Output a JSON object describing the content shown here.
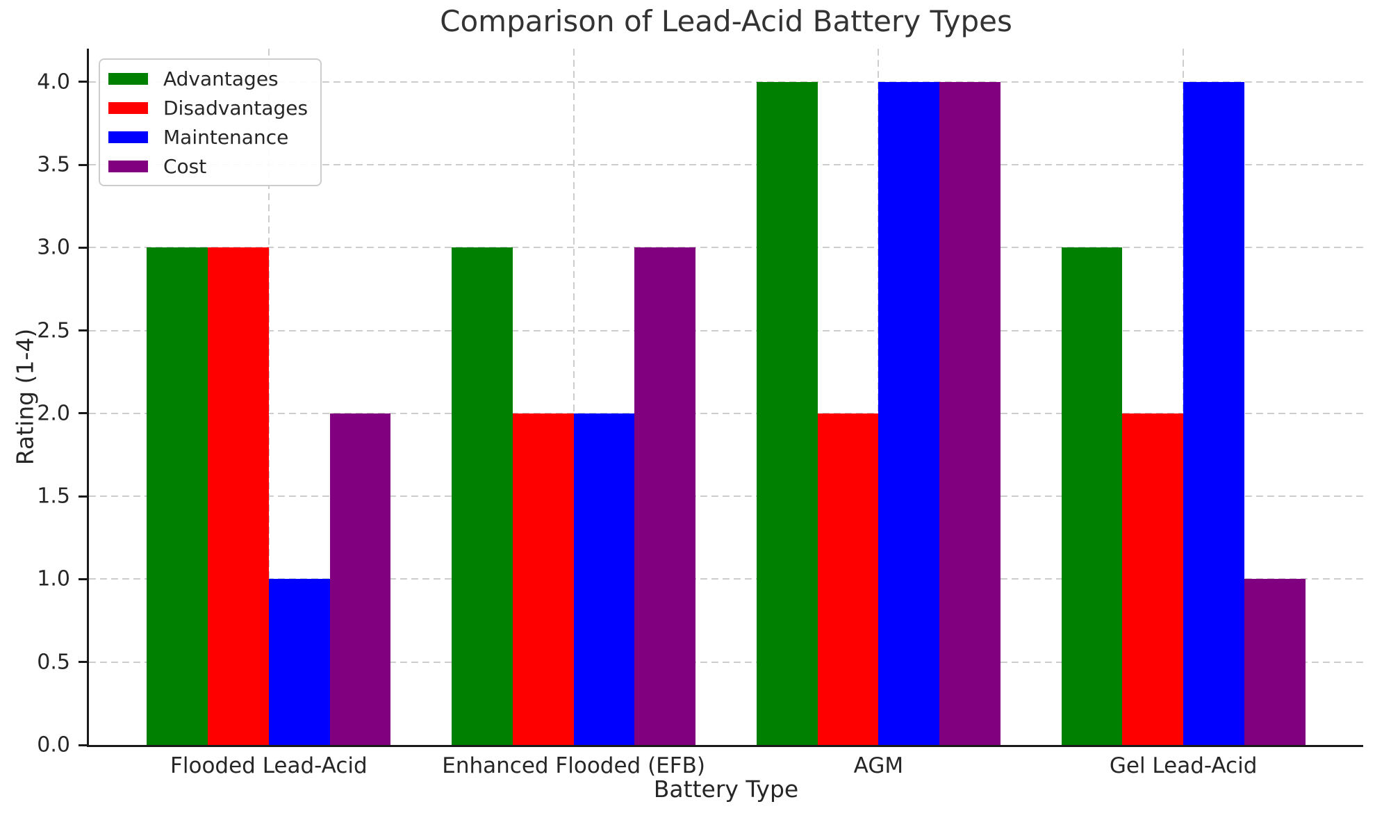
{
  "chart_data": {
    "type": "bar",
    "title": "Comparison of Lead-Acid Battery Types",
    "xlabel": "Battery Type",
    "ylabel": "Rating (1-4)",
    "categories": [
      "Flooded Lead-Acid",
      "Enhanced Flooded (EFB)",
      "AGM",
      "Gel Lead-Acid"
    ],
    "series": [
      {
        "name": "Advantages",
        "color": "#008000",
        "values": [
          3,
          3,
          4,
          3
        ]
      },
      {
        "name": "Disadvantages",
        "color": "#ff0000",
        "values": [
          3,
          2,
          2,
          2
        ]
      },
      {
        "name": "Maintenance",
        "color": "#0000ff",
        "values": [
          1,
          2,
          4,
          4
        ]
      },
      {
        "name": "Cost",
        "color": "#800080",
        "values": [
          2,
          3,
          4,
          1
        ]
      }
    ],
    "ylim": [
      0,
      4.2
    ],
    "yticks": [
      0,
      0.5,
      1,
      1.5,
      2,
      2.5,
      3,
      3.5,
      4
    ],
    "ytick_labels": [
      "0.0",
      "0.5",
      "1.0",
      "1.5",
      "2.0",
      "2.5",
      "3.0",
      "3.5",
      "4.0"
    ],
    "grid": true,
    "legend": {
      "position": "upper-left"
    },
    "colors": {
      "grid": "#cdcdcd",
      "axis": "#1a1a1a",
      "text": "#262626",
      "legend_border": "#cccccc",
      "background": "#ffffff"
    }
  }
}
